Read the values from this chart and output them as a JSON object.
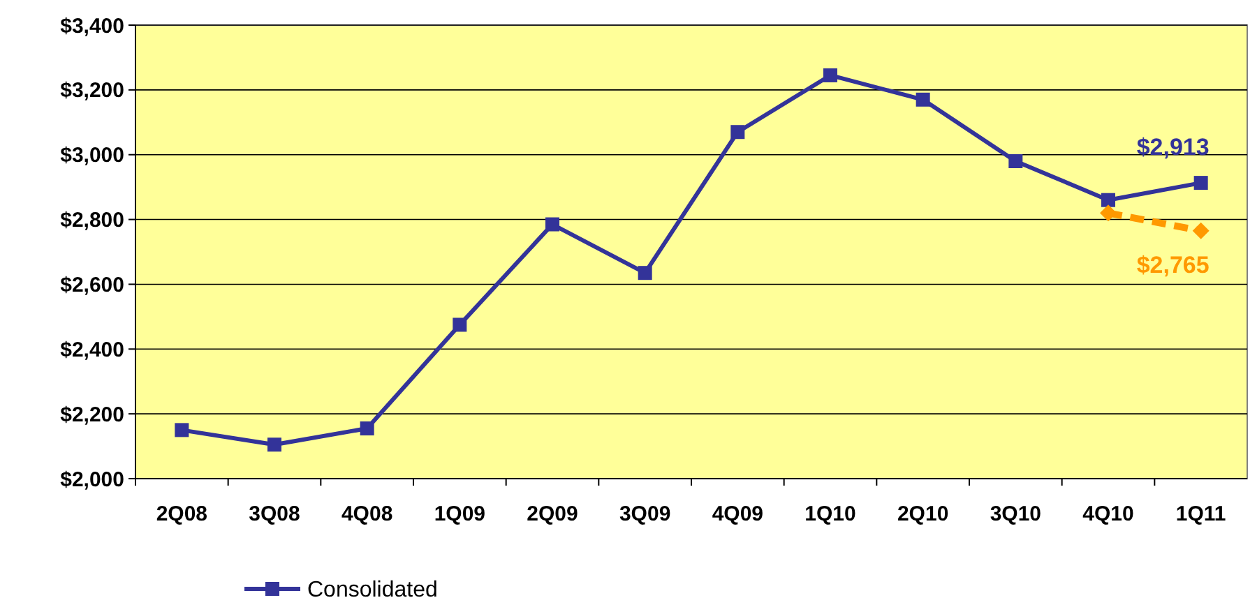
{
  "chart_data": {
    "type": "line",
    "categories": [
      "2Q08",
      "3Q08",
      "4Q08",
      "1Q09",
      "2Q09",
      "3Q09",
      "4Q09",
      "1Q10",
      "2Q10",
      "3Q10",
      "4Q10",
      "1Q11"
    ],
    "series": [
      {
        "name": "Consolidated",
        "color": "#333399",
        "marker": "square",
        "line_style": "solid",
        "values": [
          2150,
          2105,
          2155,
          2475,
          2785,
          2635,
          3070,
          3245,
          3170,
          2980,
          2860,
          2913
        ],
        "value_labels": [
          null,
          null,
          null,
          null,
          null,
          null,
          null,
          null,
          null,
          null,
          null,
          "$2,913"
        ]
      },
      {
        "color": "#ff9900",
        "marker": "diamond",
        "line_style": "dashed",
        "values": [
          null,
          null,
          null,
          null,
          null,
          null,
          null,
          null,
          null,
          null,
          2820,
          2765
        ],
        "value_labels": [
          null,
          null,
          null,
          null,
          null,
          null,
          null,
          null,
          null,
          null,
          null,
          "$2,765"
        ]
      }
    ],
    "ylim": [
      2000,
      3400
    ],
    "yticks": [
      {
        "value": 2000,
        "label": "$2,000"
      },
      {
        "value": 2200,
        "label": "$2,200"
      },
      {
        "value": 2400,
        "label": "$2,400"
      },
      {
        "value": 2600,
        "label": "$2,600"
      },
      {
        "value": 2800,
        "label": "$2,800"
      },
      {
        "value": 3000,
        "label": "$3,000"
      },
      {
        "value": 3200,
        "label": "$3,200"
      },
      {
        "value": 3400,
        "label": "$3,400"
      }
    ],
    "grid": "y",
    "legend": "bottom"
  }
}
